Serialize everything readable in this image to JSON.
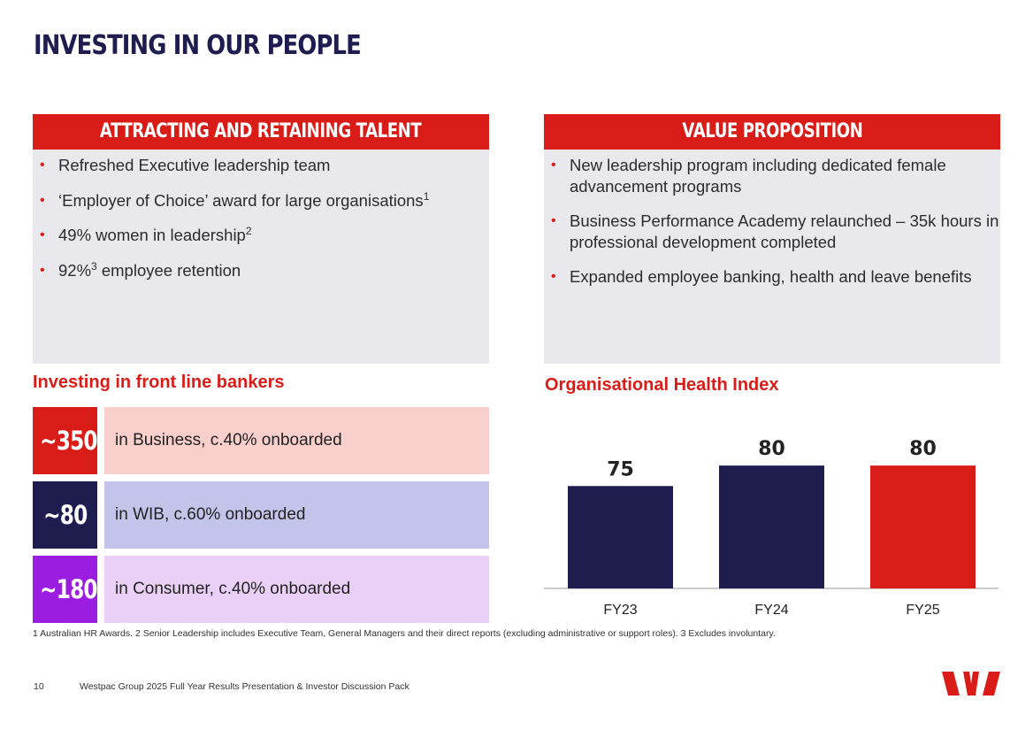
{
  "page": {
    "title": "INVESTING IN OUR PEOPLE"
  },
  "left_panel": {
    "heading": "ATTRACTING AND RETAINING TALENT",
    "items": [
      {
        "text": "Refreshed Executive leadership team",
        "sup": ""
      },
      {
        "text": "‘Employer of Choice’ award for large organisations",
        "sup": "1"
      },
      {
        "text": "49% women in leadership",
        "sup": "2"
      },
      {
        "pre": "92%",
        "sup": "3",
        "text": " employee retention"
      }
    ]
  },
  "right_panel": {
    "heading": "VALUE PROPOSITION",
    "items": [
      "New leadership program including dedicated female advancement programs",
      "Business Performance Academy relaunched – 35k hours in professional development completed",
      "Expanded employee banking, health and leave benefits"
    ]
  },
  "bankers": {
    "heading": "Investing in front line bankers",
    "rows": [
      {
        "number": "~350",
        "text": "in Business, c.40% onboarded",
        "num_color": "#d91c17",
        "bg_color": "#f9cfcc"
      },
      {
        "number": "~80",
        "text": "in WIB, c.60% onboarded",
        "num_color": "#1f1c4f",
        "bg_color": "#c4c3ea"
      },
      {
        "number": "~180",
        "text": "in Consumer, c.40% onboarded",
        "num_color": "#9b1ee0",
        "bg_color": "#eacff7"
      }
    ]
  },
  "chart_data": {
    "type": "bar",
    "title": "Organisational Health Index",
    "categories": [
      "FY23",
      "FY24",
      "FY25"
    ],
    "values": [
      75,
      80,
      80
    ],
    "colors": [
      "#1f1c4f",
      "#1f1c4f",
      "#d91c17"
    ],
    "data_labels": [
      "75",
      "80",
      "80"
    ]
  },
  "footnote": "1 Australian HR Awards. 2 Senior Leadership includes Executive Team, General Managers and their direct reports (excluding administrative or support roles). 3 Excludes involuntary.",
  "footer": {
    "page_number": "10",
    "text": "Westpac Group 2025 Full Year Results Presentation & Investor Discussion Pack",
    "logo": "westpac-logo"
  },
  "colors": {
    "brand_red": "#d91c17",
    "navy": "#1f1c4f",
    "panel_bg": "#e9e8ed"
  }
}
